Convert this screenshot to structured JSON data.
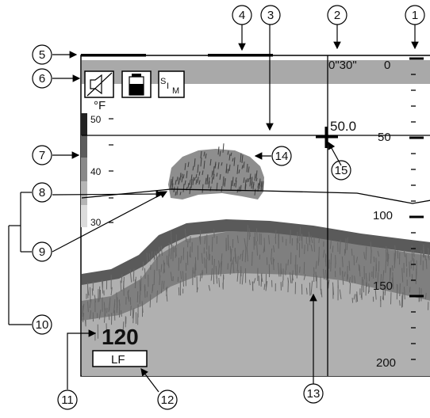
{
  "header": {
    "time_marker": "0\"30\"",
    "range_start": "0"
  },
  "icons": {
    "speaker_muted": "speaker-muted-icon",
    "battery": "battery-icon",
    "sim_label_main": "S",
    "sim_label_sub1": "I",
    "sim_label_sub2": "M"
  },
  "temperature_scale": {
    "unit": "°F",
    "ticks": [
      "50",
      "40",
      "30"
    ]
  },
  "depth_scale": {
    "ticks": [
      "50",
      "100",
      "150",
      "200"
    ]
  },
  "cursor_depth": "50.0",
  "current_depth": "120",
  "frequency": "LF",
  "callouts": [
    "1",
    "2",
    "3",
    "4",
    "5",
    "6",
    "7",
    "8",
    "9",
    "10",
    "11",
    "12",
    "13",
    "14",
    "15"
  ],
  "colors": {
    "header_band": "#a9a9a9",
    "echo_dark": "#5a5a5a",
    "echo_mid": "#7f7f7f",
    "echo_light": "#b0b0b0",
    "temp_bar": [
      "#222222",
      "#5c5c5c",
      "#8a8a8a",
      "#b5b5b5",
      "#dcdcdc"
    ]
  }
}
